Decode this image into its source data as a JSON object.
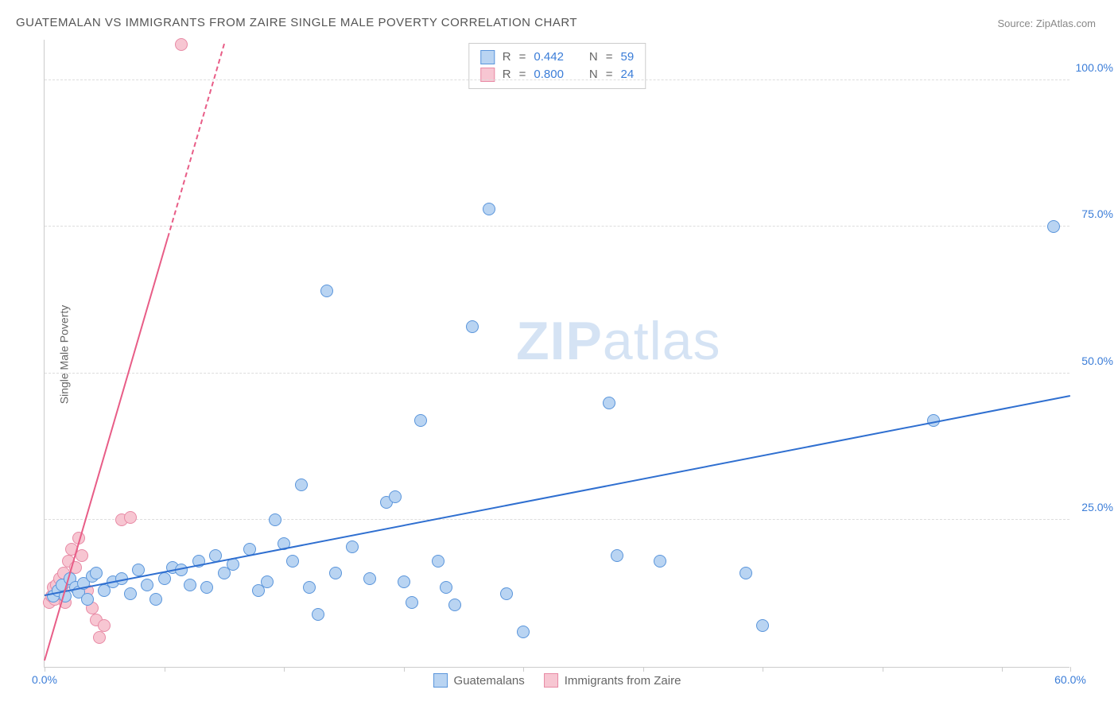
{
  "title": "GUATEMALAN VS IMMIGRANTS FROM ZAIRE SINGLE MALE POVERTY CORRELATION CHART",
  "source": "Source: ZipAtlas.com",
  "ylabel": "Single Male Poverty",
  "watermark_bold": "ZIP",
  "watermark_light": "atlas",
  "chart": {
    "type": "scatter",
    "background_color": "#ffffff",
    "grid_color": "#dddddd",
    "axis_color": "#cccccc",
    "tick_label_color": "#3b7dd8",
    "xlim": [
      0,
      60
    ],
    "ylim": [
      0,
      107
    ],
    "xtick_positions": [
      0,
      7,
      14,
      21,
      28,
      35,
      42,
      49,
      56,
      60
    ],
    "xtick_labels": {
      "0": "0.0%",
      "60": "60.0%"
    },
    "ytick_positions": [
      25,
      50,
      75,
      100
    ],
    "ytick_labels": {
      "25": "25.0%",
      "50": "50.0%",
      "75": "75.0%",
      "100": "100.0%"
    },
    "marker_radius": 8,
    "label_fontsize": 14,
    "title_fontsize": 15,
    "title_color": "#555555"
  },
  "series": {
    "guatemalans": {
      "label": "Guatemalans",
      "fill_color": "#b9d4f2",
      "stroke_color": "#5a95db",
      "trend_color": "#2f6fd0",
      "R": "0.442",
      "N": "59",
      "trend": {
        "x1": 0,
        "y1": 12,
        "x2": 60,
        "y2": 46
      },
      "points": [
        [
          0.5,
          12
        ],
        [
          0.8,
          13
        ],
        [
          1,
          14
        ],
        [
          1.2,
          12
        ],
        [
          1.5,
          15
        ],
        [
          1.8,
          13.5
        ],
        [
          2,
          12.8
        ],
        [
          2.3,
          14.2
        ],
        [
          2.5,
          11.5
        ],
        [
          2.8,
          15.5
        ],
        [
          3,
          16
        ],
        [
          3.5,
          13
        ],
        [
          4,
          14.5
        ],
        [
          4.5,
          15
        ],
        [
          5,
          12.5
        ],
        [
          5.5,
          16.5
        ],
        [
          6,
          14
        ],
        [
          6.5,
          11.5
        ],
        [
          7,
          15
        ],
        [
          7.5,
          17
        ],
        [
          8,
          16.5
        ],
        [
          8.5,
          14
        ],
        [
          9,
          18
        ],
        [
          9.5,
          13.5
        ],
        [
          10,
          19
        ],
        [
          10.5,
          16
        ],
        [
          11,
          17.5
        ],
        [
          12,
          20
        ],
        [
          12.5,
          13
        ],
        [
          13,
          14.5
        ],
        [
          13.5,
          25
        ],
        [
          14,
          21
        ],
        [
          14.5,
          18
        ],
        [
          15,
          31
        ],
        [
          15.5,
          13.5
        ],
        [
          16,
          9
        ],
        [
          16.5,
          64
        ],
        [
          17,
          16
        ],
        [
          18,
          20.5
        ],
        [
          19,
          15
        ],
        [
          20,
          28
        ],
        [
          20.5,
          29
        ],
        [
          21,
          14.5
        ],
        [
          21.5,
          11
        ],
        [
          22,
          42
        ],
        [
          23,
          18
        ],
        [
          23.5,
          13.5
        ],
        [
          24,
          10.5
        ],
        [
          25,
          58
        ],
        [
          26,
          78
        ],
        [
          27,
          12.5
        ],
        [
          28,
          6
        ],
        [
          33,
          45
        ],
        [
          33.5,
          19
        ],
        [
          36,
          18
        ],
        [
          41,
          16
        ],
        [
          42,
          7
        ],
        [
          52,
          42
        ],
        [
          59,
          75
        ]
      ]
    },
    "zaire": {
      "label": "Immigrants from Zaire",
      "fill_color": "#f7c6d2",
      "stroke_color": "#e88aa5",
      "trend_color": "#e85d87",
      "R": "0.800",
      "N": "24",
      "trend_solid": {
        "x1": 0,
        "y1": 1,
        "x2": 7.2,
        "y2": 73
      },
      "trend_dashed": {
        "x1": 7.2,
        "y1": 73,
        "x2": 10.5,
        "y2": 106
      },
      "points": [
        [
          0.3,
          11
        ],
        [
          0.4,
          12
        ],
        [
          0.5,
          13.5
        ],
        [
          0.6,
          11.5
        ],
        [
          0.7,
          14
        ],
        [
          0.8,
          12.5
        ],
        [
          0.9,
          15
        ],
        [
          1,
          13
        ],
        [
          1.1,
          16
        ],
        [
          1.2,
          11
        ],
        [
          1.4,
          18
        ],
        [
          1.5,
          14.5
        ],
        [
          1.6,
          20
        ],
        [
          1.8,
          17
        ],
        [
          2,
          22
        ],
        [
          2.2,
          19
        ],
        [
          2.5,
          13
        ],
        [
          2.8,
          10
        ],
        [
          3,
          8
        ],
        [
          3.2,
          5
        ],
        [
          3.5,
          7
        ],
        [
          4.5,
          25
        ],
        [
          5,
          25.5
        ],
        [
          8,
          106
        ]
      ]
    }
  },
  "stat_legend": {
    "R_label": "R",
    "N_label": "N",
    "eq": "="
  },
  "bottom_legend": {
    "items": [
      "guatemalans",
      "zaire"
    ]
  }
}
